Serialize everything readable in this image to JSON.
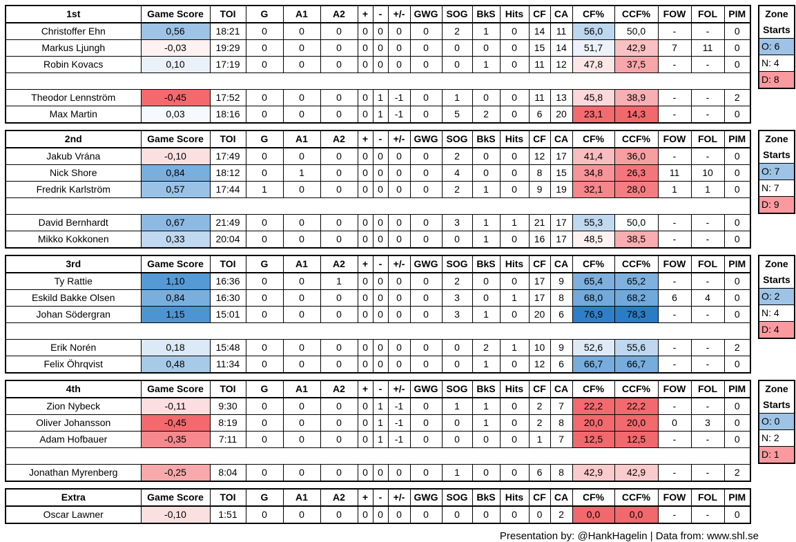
{
  "chart_data": {
    "type": "table",
    "columns": [
      "Game Score",
      "TOI",
      "G",
      "A1",
      "A2",
      "+",
      "-",
      "+/-",
      "GWG",
      "SOG",
      "BkS",
      "Hits",
      "CF",
      "CA",
      "CF%",
      "CCF%",
      "FOW",
      "FOL",
      "PIM"
    ],
    "sections": [
      {
        "label": "1st",
        "zone": {
          "title1": "Zone",
          "title2": "Starts",
          "o": "O: 6",
          "n": "N: 4",
          "d": "D: 8"
        },
        "rows": [
          {
            "name": "Christoffer Ehn",
            "gs": "0,56",
            "gs_bg": "#9DC3E6",
            "toi": "18:21",
            "g": "0",
            "a1": "0",
            "a2": "0",
            "plus": "0",
            "minus": "0",
            "pm": "0",
            "gwg": "0",
            "sog": "2",
            "bks": "1",
            "hits": "0",
            "cf": "14",
            "ca": "11",
            "cfp": "56,0",
            "cfp_bg": "#BDD7EE",
            "ccfp": "50,0",
            "ccfp_bg": "#FFFFFF",
            "fow": "-",
            "fol": "-",
            "pim": "0"
          },
          {
            "name": "Markus Ljungh",
            "gs": "-0,03",
            "gs_bg": "#FDF2F1",
            "toi": "19:29",
            "g": "0",
            "a1": "0",
            "a2": "0",
            "plus": "0",
            "minus": "0",
            "pm": "0",
            "gwg": "0",
            "sog": "0",
            "bks": "0",
            "hits": "0",
            "cf": "15",
            "ca": "14",
            "cfp": "51,7",
            "cfp_bg": "#EBF2F9",
            "ccfp": "42,9",
            "ccfp_bg": "#F9C1C3",
            "fow": "7",
            "fol": "11",
            "pim": "0"
          },
          {
            "name": "Robin Kovacs",
            "gs": "0,10",
            "gs_bg": "#EAF1F9",
            "toi": "17:19",
            "g": "0",
            "a1": "0",
            "a2": "0",
            "plus": "0",
            "minus": "0",
            "pm": "0",
            "gwg": "0",
            "sog": "0",
            "bks": "1",
            "hits": "0",
            "cf": "11",
            "ca": "12",
            "cfp": "47,8",
            "cfp_bg": "#FCE6E6",
            "ccfp": "37,5",
            "ccfp_bg": "#F7A6A9",
            "fow": "-",
            "fol": "-",
            "pim": "0"
          },
          {
            "spacer": true
          },
          {
            "name": "Theodor Lennström",
            "gs": "-0,45",
            "gs_bg": "#F3696E",
            "toi": "17:52",
            "g": "0",
            "a1": "0",
            "a2": "0",
            "plus": "0",
            "minus": "1",
            "pm": "-1",
            "gwg": "0",
            "sog": "1",
            "bks": "0",
            "hits": "0",
            "cf": "11",
            "ca": "13",
            "cfp": "45,8",
            "cfp_bg": "#FBD8D9",
            "ccfp": "38,9",
            "ccfp_bg": "#F8AFB2",
            "fow": "-",
            "fol": "-",
            "pim": "2"
          },
          {
            "name": "Max Martin",
            "gs": "0,03",
            "gs_bg": "#F6F9FD",
            "toi": "18:16",
            "g": "0",
            "a1": "0",
            "a2": "0",
            "plus": "0",
            "minus": "1",
            "pm": "-1",
            "gwg": "0",
            "sog": "5",
            "bks": "2",
            "hits": "0",
            "cf": "6",
            "ca": "20",
            "cfp": "23,1",
            "cfp_bg": "#F26B70",
            "ccfp": "14,3",
            "ccfp_bg": "#F1686D",
            "fow": "-",
            "fol": "-",
            "pim": "0"
          }
        ]
      },
      {
        "label": "2nd",
        "zone": {
          "title1": "Zone",
          "title2": "Starts",
          "o": "O: 7",
          "n": "N: 7",
          "d": "D: 9"
        },
        "rows": [
          {
            "name": "Jakub Vrána",
            "gs": "-0,10",
            "gs_bg": "#FBE0E1",
            "toi": "17:49",
            "g": "0",
            "a1": "0",
            "a2": "0",
            "plus": "0",
            "minus": "0",
            "pm": "0",
            "gwg": "0",
            "sog": "2",
            "bks": "0",
            "hits": "0",
            "cf": "12",
            "ca": "17",
            "cfp": "41,4",
            "cfp_bg": "#F9BDBF",
            "ccfp": "36,0",
            "ccfp_bg": "#F79EA1",
            "fow": "-",
            "fol": "-",
            "pim": "0"
          },
          {
            "name": "Nick Shore",
            "gs": "0,84",
            "gs_bg": "#79AFDF",
            "toi": "18:12",
            "g": "0",
            "a1": "1",
            "a2": "0",
            "plus": "0",
            "minus": "0",
            "pm": "0",
            "gwg": "0",
            "sog": "4",
            "bks": "0",
            "hits": "0",
            "cf": "8",
            "ca": "15",
            "cfp": "34,8",
            "cfp_bg": "#F69599",
            "ccfp": "26,3",
            "ccfp_bg": "#F3767B",
            "fow": "11",
            "fol": "10",
            "pim": "0"
          },
          {
            "name": "Fredrik Karlström",
            "gs": "0,57",
            "gs_bg": "#9AC2E7",
            "toi": "17:44",
            "g": "1",
            "a1": "0",
            "a2": "0",
            "plus": "0",
            "minus": "0",
            "pm": "0",
            "gwg": "0",
            "sog": "2",
            "bks": "1",
            "hits": "0",
            "cf": "9",
            "ca": "19",
            "cfp": "32,1",
            "cfp_bg": "#F5868A",
            "ccfp": "28,0",
            "ccfp_bg": "#F47D81",
            "fow": "1",
            "fol": "1",
            "pim": "0"
          },
          {
            "spacer": true
          },
          {
            "name": "David Bernhardt",
            "gs": "0,67",
            "gs_bg": "#8CBAE3",
            "toi": "21:49",
            "g": "0",
            "a1": "0",
            "a2": "0",
            "plus": "0",
            "minus": "0",
            "pm": "0",
            "gwg": "0",
            "sog": "3",
            "bks": "1",
            "hits": "1",
            "cf": "21",
            "ca": "17",
            "cfp": "55,3",
            "cfp_bg": "#C1D9EF",
            "ccfp": "50,0",
            "ccfp_bg": "#FFFFFF",
            "fow": "-",
            "fol": "-",
            "pim": "0"
          },
          {
            "name": "Mikko Kokkonen",
            "gs": "0,33",
            "gs_bg": "#C0D8F0",
            "toi": "20:04",
            "g": "0",
            "a1": "0",
            "a2": "0",
            "plus": "0",
            "minus": "0",
            "pm": "0",
            "gwg": "0",
            "sog": "0",
            "bks": "1",
            "hits": "0",
            "cf": "16",
            "ca": "17",
            "cfp": "48,5",
            "cfp_bg": "#FDF1F1",
            "ccfp": "38,5",
            "ccfp_bg": "#F8ADB0",
            "fow": "-",
            "fol": "-",
            "pim": "0"
          }
        ]
      },
      {
        "label": "3rd",
        "zone": {
          "title1": "Zone",
          "title2": "Starts",
          "o": "O: 2",
          "n": "N: 4",
          "d": "D: 4"
        },
        "rows": [
          {
            "name": "Ty Rattie",
            "gs": "1,10",
            "gs_bg": "#559AD5",
            "toi": "16:36",
            "g": "0",
            "a1": "0",
            "a2": "1",
            "plus": "0",
            "minus": "0",
            "pm": "0",
            "gwg": "0",
            "sog": "2",
            "bks": "0",
            "hits": "0",
            "cf": "17",
            "ca": "9",
            "cfp": "65,4",
            "cfp_bg": "#7DB0DE",
            "ccfp": "65,2",
            "ccfp_bg": "#7EB1DE",
            "fow": "-",
            "fol": "-",
            "pim": "0"
          },
          {
            "name": "Eskild Bakke Olsen",
            "gs": "0,84",
            "gs_bg": "#79AFDF",
            "toi": "16:30",
            "g": "0",
            "a1": "0",
            "a2": "0",
            "plus": "0",
            "minus": "0",
            "pm": "0",
            "gwg": "0",
            "sog": "3",
            "bks": "0",
            "hits": "1",
            "cf": "17",
            "ca": "8",
            "cfp": "68,0",
            "cfp_bg": "#71AADB",
            "ccfp": "68,2",
            "ccfp_bg": "#70A9DB",
            "fow": "6",
            "fol": "4",
            "pim": "0"
          },
          {
            "name": "Johan Södergran",
            "gs": "1,15",
            "gs_bg": "#4D94D3",
            "toi": "15:01",
            "g": "0",
            "a1": "0",
            "a2": "0",
            "plus": "0",
            "minus": "0",
            "pm": "0",
            "gwg": "0",
            "sog": "3",
            "bks": "1",
            "hits": "0",
            "cf": "20",
            "ca": "6",
            "cfp": "76,9",
            "cfp_bg": "#2F7FC8",
            "ccfp": "78,3",
            "ccfp_bg": "#2A7CC6",
            "fow": "-",
            "fol": "-",
            "pim": "0"
          },
          {
            "spacer": true
          },
          {
            "name": "Erik Norén",
            "gs": "0,18",
            "gs_bg": "#DCE9F6",
            "toi": "15:48",
            "g": "0",
            "a1": "0",
            "a2": "0",
            "plus": "0",
            "minus": "0",
            "pm": "0",
            "gwg": "0",
            "sog": "0",
            "bks": "2",
            "hits": "1",
            "cf": "10",
            "ca": "9",
            "cfp": "52,6",
            "cfp_bg": "#DFEAF6",
            "ccfp": "55,6",
            "ccfp_bg": "#BFD8EF",
            "fow": "-",
            "fol": "-",
            "pim": "2"
          },
          {
            "name": "Felix Öhrqvist",
            "gs": "0,48",
            "gs_bg": "#A7CAE9",
            "toi": "11:34",
            "g": "0",
            "a1": "0",
            "a2": "0",
            "plus": "0",
            "minus": "0",
            "pm": "0",
            "gwg": "0",
            "sog": "0",
            "bks": "1",
            "hits": "0",
            "cf": "12",
            "ca": "6",
            "cfp": "66,7",
            "cfp_bg": "#77ADDC",
            "ccfp": "66,7",
            "ccfp_bg": "#77ADDC",
            "fow": "-",
            "fol": "-",
            "pim": "0"
          }
        ]
      },
      {
        "label": "4th",
        "zone": {
          "title1": "Zone",
          "title2": "Starts",
          "o": "O: 0",
          "n": "N: 2",
          "d": "D: 1"
        },
        "rows": [
          {
            "name": "Zion Nybeck",
            "gs": "-0,11",
            "gs_bg": "#FBDEDF",
            "toi": "9:30",
            "g": "0",
            "a1": "0",
            "a2": "0",
            "plus": "0",
            "minus": "1",
            "pm": "-1",
            "gwg": "0",
            "sog": "1",
            "bks": "1",
            "hits": "0",
            "cf": "2",
            "ca": "7",
            "cfp": "22,2",
            "cfp_bg": "#F26A6F",
            "ccfp": "22,2",
            "ccfp_bg": "#F26A6F",
            "fow": "-",
            "fol": "-",
            "pim": "0"
          },
          {
            "name": "Oliver Johansson",
            "gs": "-0,45",
            "gs_bg": "#F3696E",
            "toi": "8:19",
            "g": "0",
            "a1": "0",
            "a2": "0",
            "plus": "0",
            "minus": "1",
            "pm": "-1",
            "gwg": "0",
            "sog": "0",
            "bks": "1",
            "hits": "0",
            "cf": "2",
            "ca": "8",
            "cfp": "20,0",
            "cfp_bg": "#F2696E",
            "ccfp": "20,0",
            "ccfp_bg": "#F2696E",
            "fow": "0",
            "fol": "3",
            "pim": "0"
          },
          {
            "name": "Adam Hofbauer",
            "gs": "-0,35",
            "gs_bg": "#F5898D",
            "toi": "7:11",
            "g": "0",
            "a1": "0",
            "a2": "0",
            "plus": "0",
            "minus": "1",
            "pm": "-1",
            "gwg": "0",
            "sog": "0",
            "bks": "0",
            "hits": "0",
            "cf": "1",
            "ca": "7",
            "cfp": "12,5",
            "cfp_bg": "#F1686D",
            "ccfp": "12,5",
            "ccfp_bg": "#F1686D",
            "fow": "-",
            "fol": "-",
            "pim": "0"
          },
          {
            "spacer": true
          },
          {
            "name": "Jonathan Myrenberg",
            "gs": "-0,25",
            "gs_bg": "#F8A9AC",
            "toi": "8:04",
            "g": "0",
            "a1": "0",
            "a2": "0",
            "plus": "0",
            "minus": "0",
            "pm": "0",
            "gwg": "0",
            "sog": "1",
            "bks": "0",
            "hits": "0",
            "cf": "6",
            "ca": "8",
            "cfp": "42,9",
            "cfp_bg": "#FACBCC",
            "ccfp": "42,9",
            "ccfp_bg": "#FACBCC",
            "fow": "-",
            "fol": "-",
            "pim": "2"
          }
        ]
      },
      {
        "label": "Extra",
        "rows": [
          {
            "name": "Oscar Lawner",
            "gs": "-0,10",
            "gs_bg": "#FBE0E1",
            "toi": "1:51",
            "g": "0",
            "a1": "0",
            "a2": "0",
            "plus": "0",
            "minus": "0",
            "pm": "0",
            "gwg": "0",
            "sog": "0",
            "bks": "0",
            "hits": "0",
            "cf": "0",
            "ca": "2",
            "cfp": "0,0",
            "cfp_bg": "#F1686D",
            "ccfp": "0,0",
            "ccfp_bg": "#F1686D",
            "fow": "-",
            "fol": "-",
            "pim": "0"
          }
        ]
      }
    ]
  },
  "colors": {
    "zone_offensive_bg": "#9DC3E6",
    "zone_defensive_bg": "#FB9A9E",
    "border": "#000000",
    "background": "#FFFFFF"
  },
  "footer": {
    "text": "Presentation by: @HankHagelin | Data from: www.shl.se"
  }
}
